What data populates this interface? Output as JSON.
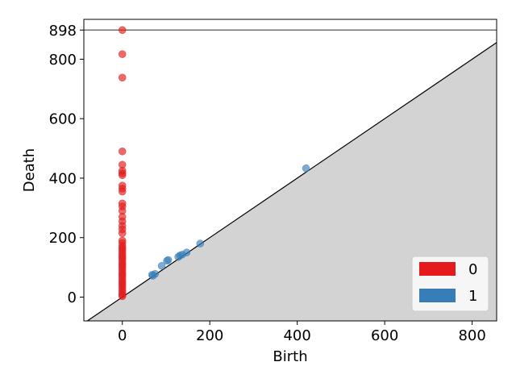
{
  "chart_data": {
    "type": "scatter",
    "xlabel": "Birth",
    "ylabel": "Death",
    "xlim": [
      -88,
      856
    ],
    "ylim": [
      -80,
      934
    ],
    "infinity_value": 898,
    "x_ticks": [
      0,
      200,
      400,
      600,
      800
    ],
    "x_tick_labels": [
      "0",
      "200",
      "400",
      "600",
      "800"
    ],
    "y_ticks": [
      0,
      200,
      400,
      600,
      800,
      898
    ],
    "y_tick_labels": [
      "0",
      "200",
      "400",
      "600",
      "800",
      "898"
    ],
    "legend_placement": "bottom-right",
    "series": [
      {
        "name": "0",
        "color": "#e41a1c",
        "points": [
          [
            0,
            898
          ],
          [
            0,
            817
          ],
          [
            0,
            738
          ],
          [
            0,
            490
          ],
          [
            0,
            445
          ],
          [
            0,
            425
          ],
          [
            0,
            417
          ],
          [
            0,
            410
          ],
          [
            0,
            375
          ],
          [
            0,
            365
          ],
          [
            0,
            355
          ],
          [
            0,
            315
          ],
          [
            0,
            305
          ],
          [
            0,
            290
          ],
          [
            0,
            270
          ],
          [
            0,
            255
          ],
          [
            0,
            240
          ],
          [
            0,
            228
          ],
          [
            0,
            215
          ],
          [
            0,
            190
          ],
          [
            0,
            182
          ],
          [
            0,
            172
          ],
          [
            0,
            165
          ],
          [
            0,
            158
          ],
          [
            0,
            150
          ],
          [
            0,
            142
          ],
          [
            0,
            135
          ],
          [
            0,
            128
          ],
          [
            0,
            120
          ],
          [
            0,
            112
          ],
          [
            0,
            105
          ],
          [
            0,
            98
          ],
          [
            0,
            90
          ],
          [
            0,
            82
          ],
          [
            0,
            75
          ],
          [
            0,
            68
          ],
          [
            0,
            60
          ],
          [
            0,
            52
          ],
          [
            0,
            45
          ],
          [
            0,
            38
          ],
          [
            0,
            30
          ],
          [
            0,
            22
          ],
          [
            0,
            15
          ],
          [
            0,
            8
          ],
          [
            0,
            3
          ]
        ]
      },
      {
        "name": "1",
        "color": "#377eb8",
        "points": [
          [
            420,
            433
          ],
          [
            178,
            180
          ],
          [
            147,
            150
          ],
          [
            137,
            143
          ],
          [
            132,
            140
          ],
          [
            128,
            135
          ],
          [
            105,
            125
          ],
          [
            102,
            122
          ],
          [
            90,
            105
          ],
          [
            75,
            78
          ],
          [
            70,
            72
          ],
          [
            68,
            75
          ]
        ]
      }
    ]
  }
}
